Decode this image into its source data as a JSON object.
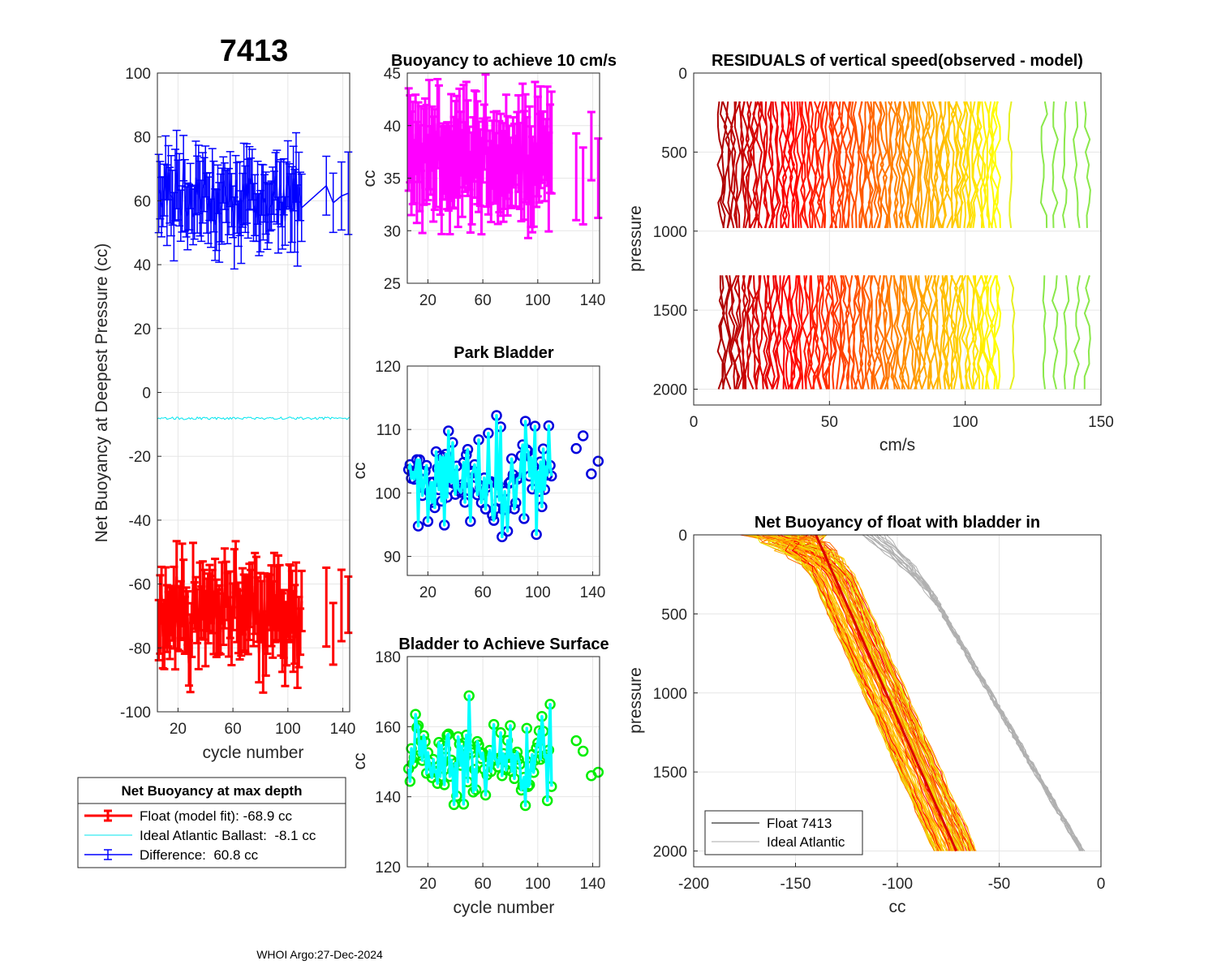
{
  "footer": "WHOI Argo:27-Dec-2024",
  "chart_data": [
    {
      "id": "net_buoyancy",
      "type": "line",
      "title": "7413",
      "xlabel": "cycle number",
      "ylabel": "Net Buoyancy at Deepest Pressure (cc)",
      "xlim": [
        5,
        145
      ],
      "ylim": [
        -100,
        100
      ],
      "xticks": [
        20,
        60,
        100,
        140
      ],
      "yticks": [
        -100,
        -80,
        -60,
        -40,
        -20,
        0,
        20,
        40,
        60,
        80,
        100
      ],
      "cycles_range": [
        6,
        110
      ],
      "late_cycles": [
        128,
        133,
        139,
        144
      ],
      "series": [
        {
          "name": "Float (model fit)",
          "mean": -68.9,
          "spread": 8,
          "err": 10,
          "color": "#ff0000"
        },
        {
          "name": "Ideal Atlantic Ballast",
          "mean": -8.1,
          "color": "#00e5ee"
        },
        {
          "name": "Difference",
          "mean": 60.8,
          "spread": 7,
          "err": 10,
          "color": "#0000ff"
        }
      ],
      "legend": {
        "title": "Net Buoyancy at max depth",
        "entries": [
          "Float (model fit): -68.9 cc",
          "Ideal Atlantic Ballast:  -8.1 cc",
          "Difference:  60.8 cc"
        ]
      }
    },
    {
      "id": "buoyancy_10cms",
      "type": "line",
      "title": "Buoyancy to achieve 10 cm/s",
      "ylabel": "cc",
      "xlim": [
        5,
        145
      ],
      "ylim": [
        25,
        45
      ],
      "xticks": [
        20,
        60,
        100,
        140
      ],
      "yticks": [
        25,
        30,
        35,
        40,
        45
      ],
      "mean": 37,
      "spread": 2.5,
      "err": 4,
      "color": "#ff00ff"
    },
    {
      "id": "park_bladder",
      "type": "line",
      "title": "Park Bladder",
      "ylabel": "cc",
      "xlim": [
        5,
        145
      ],
      "ylim": [
        87,
        120
      ],
      "xticks": [
        20,
        60,
        100,
        140
      ],
      "yticks": [
        90,
        100,
        110,
        120
      ],
      "mean": 102,
      "spread": 6,
      "line_color": "#00ffff",
      "marker_color": "#0000dd",
      "late_points": [
        [
          128,
          107
        ],
        [
          133,
          109
        ],
        [
          139,
          103
        ],
        [
          144,
          105
        ]
      ]
    },
    {
      "id": "bladder_surface",
      "type": "line",
      "title": "Bladder to Achieve Surface",
      "xlabel": "cycle number",
      "ylabel": "cc",
      "xlim": [
        5,
        145
      ],
      "ylim": [
        120,
        180
      ],
      "xticks": [
        20,
        60,
        100,
        140
      ],
      "yticks": [
        120,
        140,
        160,
        180
      ],
      "mean": 151,
      "spread": 9,
      "line_color": "#00ffff",
      "marker_color": "#00ee00",
      "late_points": [
        [
          128,
          156
        ],
        [
          133,
          153
        ],
        [
          139,
          146
        ],
        [
          144,
          147
        ]
      ]
    },
    {
      "id": "residuals",
      "type": "line",
      "title": "RESIDUALS of vertical speed(observed - model)",
      "xlabel": "cm/s",
      "ylabel": "pressure",
      "xlim": [
        0,
        150
      ],
      "ylim": [
        0,
        2100
      ],
      "xticks": [
        0,
        50,
        100,
        150
      ],
      "yticks": [
        0,
        500,
        1000,
        1500,
        2000
      ],
      "segments": [
        [
          180,
          1010
        ],
        [
          1280,
          2010
        ]
      ],
      "offset_range": [
        10,
        112
      ],
      "late_offsets": [
        117,
        129,
        133,
        137,
        141,
        145
      ]
    },
    {
      "id": "net_buoyancy_profile",
      "type": "line",
      "title": "Net Buoyancy of float with bladder in",
      "xlabel": "cc",
      "ylabel": "pressure",
      "xlim": [
        -200,
        0
      ],
      "ylim": [
        0,
        2100
      ],
      "xticks": [
        -200,
        -150,
        -100,
        -50,
        0
      ],
      "yticks": [
        0,
        500,
        1000,
        1500,
        2000
      ],
      "float_surface_cc": -140,
      "float_bottom_cc": -70,
      "ideal_surface_cc": -100,
      "ideal_bottom_cc": -8,
      "max_pressure": 2030,
      "legend": [
        "Float 7413",
        "Ideal Atlantic"
      ]
    }
  ]
}
